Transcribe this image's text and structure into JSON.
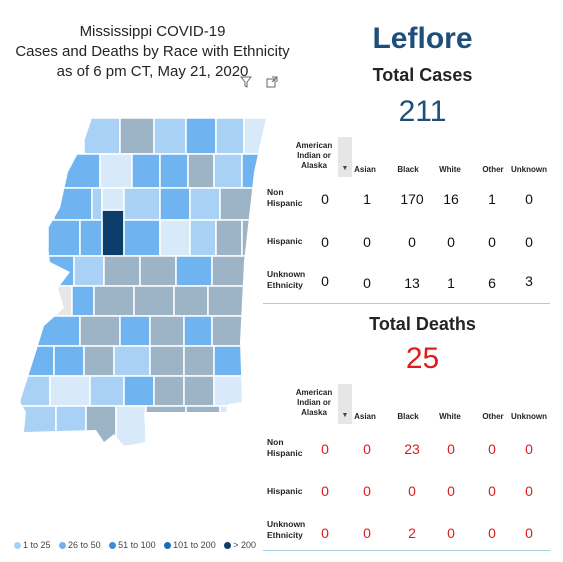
{
  "title": {
    "line1": "Mississippi COVID-19",
    "line2": "Cases and Deaths by Race with Ethnicity",
    "line3": "as of 6 pm CT, May 21, 2020"
  },
  "icons": [
    "filter-icon",
    "focus-mode-icon"
  ],
  "legend": [
    {
      "label": "1 to 25",
      "color": "#a8d1f5"
    },
    {
      "label": "26 to 50",
      "color": "#6fb4f0"
    },
    {
      "label": "51 to 100",
      "color": "#3a8fdc"
    },
    {
      "label": "101 to 200",
      "color": "#1f6bb5"
    },
    {
      "label": "> 200",
      "color": "#0d3d6b"
    }
  ],
  "county": "Leflore",
  "cases": {
    "title": "Total Cases",
    "total": "211",
    "columns": [
      "American Indian or Alaska",
      "Asian",
      "Black",
      "White",
      "Other",
      "Unknown"
    ],
    "rows": [
      {
        "label": "Non Hispanic",
        "values": [
          "0",
          "1",
          "170",
          "16",
          "1",
          "0"
        ]
      },
      {
        "label": "Hispanic",
        "values": [
          "0",
          "0",
          "0",
          "0",
          "0",
          "0"
        ]
      },
      {
        "label": "Unknown Ethnicity",
        "values": [
          "0",
          "0",
          "13",
          "1",
          "6",
          "3"
        ]
      }
    ]
  },
  "deaths": {
    "title": "Total Deaths",
    "total": "25",
    "columns": [
      "American Indian or Alaska",
      "Asian",
      "Black",
      "White",
      "Other",
      "Unknown"
    ],
    "rows": [
      {
        "label": "Non Hispanic",
        "values": [
          "0",
          "0",
          "23",
          "0",
          "0",
          "0"
        ]
      },
      {
        "label": "Hispanic",
        "values": [
          "0",
          "0",
          "0",
          "0",
          "0",
          "0"
        ]
      },
      {
        "label": "Unknown Ethnicity",
        "values": [
          "0",
          "0",
          "2",
          "0",
          "0",
          "0"
        ]
      }
    ]
  }
}
